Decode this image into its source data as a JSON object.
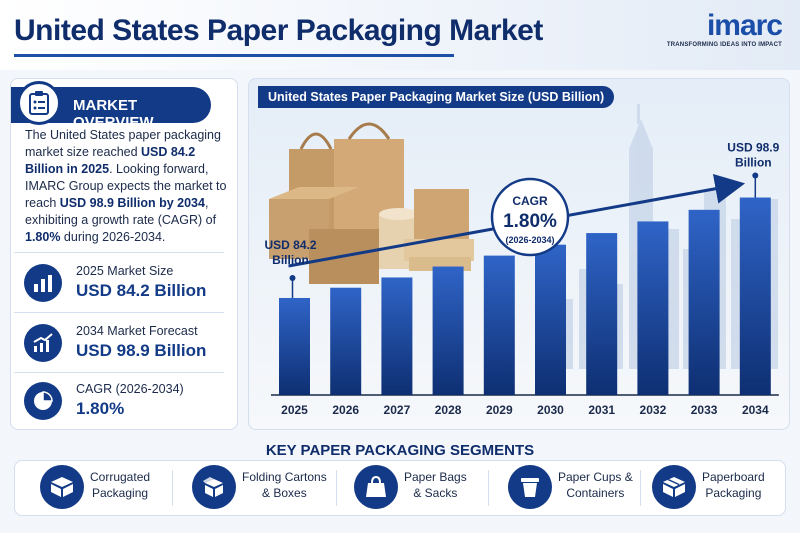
{
  "header": {
    "title": "United States Paper Packaging Market"
  },
  "logo": {
    "word": "imarc",
    "tagline": "TRANSFORMING IDEAS INTO IMPACT"
  },
  "overview": {
    "heading": "MARKET OVERVIEW",
    "p1": "The United States paper packaging market size reached ",
    "p1_bold": "USD 84.2 Billion in 2025",
    "p2": ". Looking forward, IMARC Group expects the market to reach ",
    "p2_bold": "USD 98.9 Billion by 2034",
    "p3": ", exhibiting a growth rate (CAGR) of ",
    "p3_bold": "1.80%",
    "p4": " during 2026-2034."
  },
  "stats": [
    {
      "label": "2025 Market Size",
      "value": "USD 84.2 Billion",
      "icon": "bar-chart-icon"
    },
    {
      "label": "2034 Market Forecast",
      "value": "USD 98.9 Billion",
      "icon": "trend-chart-icon"
    },
    {
      "label": "CAGR (2026-2034)",
      "value": "1.80%",
      "icon": "pie-chart-icon"
    }
  ],
  "segments": {
    "title": "KEY PAPER PACKAGING SEGMENTS",
    "items": [
      {
        "line1": "Corrugated",
        "line2": "Packaging",
        "icon": "corrugated-box-icon"
      },
      {
        "line1": "Folding Cartons",
        "line2": "& Boxes",
        "icon": "folding-carton-icon"
      },
      {
        "line1": "Paper Bags",
        "line2": "& Sacks",
        "icon": "paper-bag-icon"
      },
      {
        "line1": "Paper Cups &",
        "line2": "Containers",
        "icon": "paper-cup-icon"
      },
      {
        "line1": "Paperboard",
        "line2": "Packaging",
        "icon": "paperboard-box-icon"
      }
    ]
  },
  "colors": {
    "primary": "#123a86",
    "bar_top": "#2f64c7",
    "bar_bottom": "#0e2f72"
  },
  "chart_data": {
    "type": "bar",
    "title": "United States Paper Packaging Market Size (USD Billion)",
    "categories": [
      "2025",
      "2026",
      "2027",
      "2028",
      "2029",
      "2030",
      "2031",
      "2032",
      "2033",
      "2034"
    ],
    "values": [
      84.2,
      85.7,
      87.2,
      88.8,
      90.4,
      92.0,
      93.7,
      95.4,
      97.1,
      98.9
    ],
    "annotations": {
      "start_line1": "USD 84.2",
      "start_line2": "Billion",
      "end_line1": "USD 98.9",
      "end_line2": "Billion",
      "cagr_label": "CAGR",
      "cagr_value": "1.80%",
      "cagr_period": "(2026-2034)"
    }
  }
}
